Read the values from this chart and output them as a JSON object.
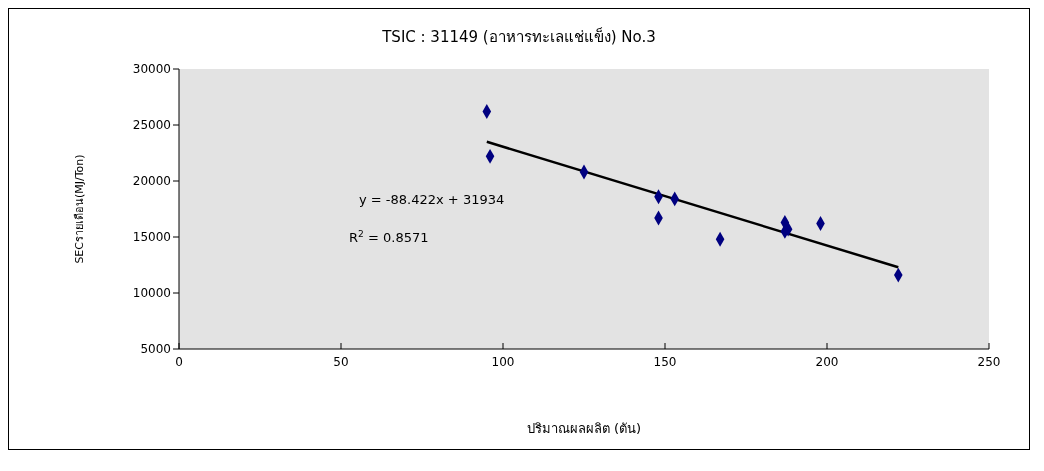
{
  "chart_data": {
    "type": "scatter",
    "title": "TSIC : 31149 (อาหารทะเลแช่แข็ง)  No.3",
    "xlabel": "ปริมาณผลผลิต (ตัน)",
    "ylabel": "SECรายเดือน(MJ/Ton)",
    "series": [
      {
        "color": "#000080",
        "x": [
          95,
          96,
          125,
          148,
          153,
          148,
          167,
          187,
          188,
          187,
          198,
          222
        ],
        "values": [
          26200,
          22200,
          20800,
          18600,
          18400,
          16700,
          14800,
          16300,
          15700,
          15500,
          16200,
          11600
        ]
      },
      {
        "type": "line",
        "color": "#000000",
        "marker": "none",
        "x": [
          95,
          222
        ],
        "values": [
          23500,
          12300
        ]
      }
    ],
    "xlim": [
      0,
      250
    ],
    "xticks": [
      0,
      50,
      100,
      150,
      200,
      250
    ],
    "ylim": [
      5000,
      30000
    ],
    "yticks": [
      5000,
      10000,
      15000,
      20000,
      25000,
      30000
    ],
    "marker": "diamond",
    "grid": false,
    "annotations": [
      "y = -88.422x + 31934",
      "R$^{2}$ = 0.8571"
    ]
  }
}
